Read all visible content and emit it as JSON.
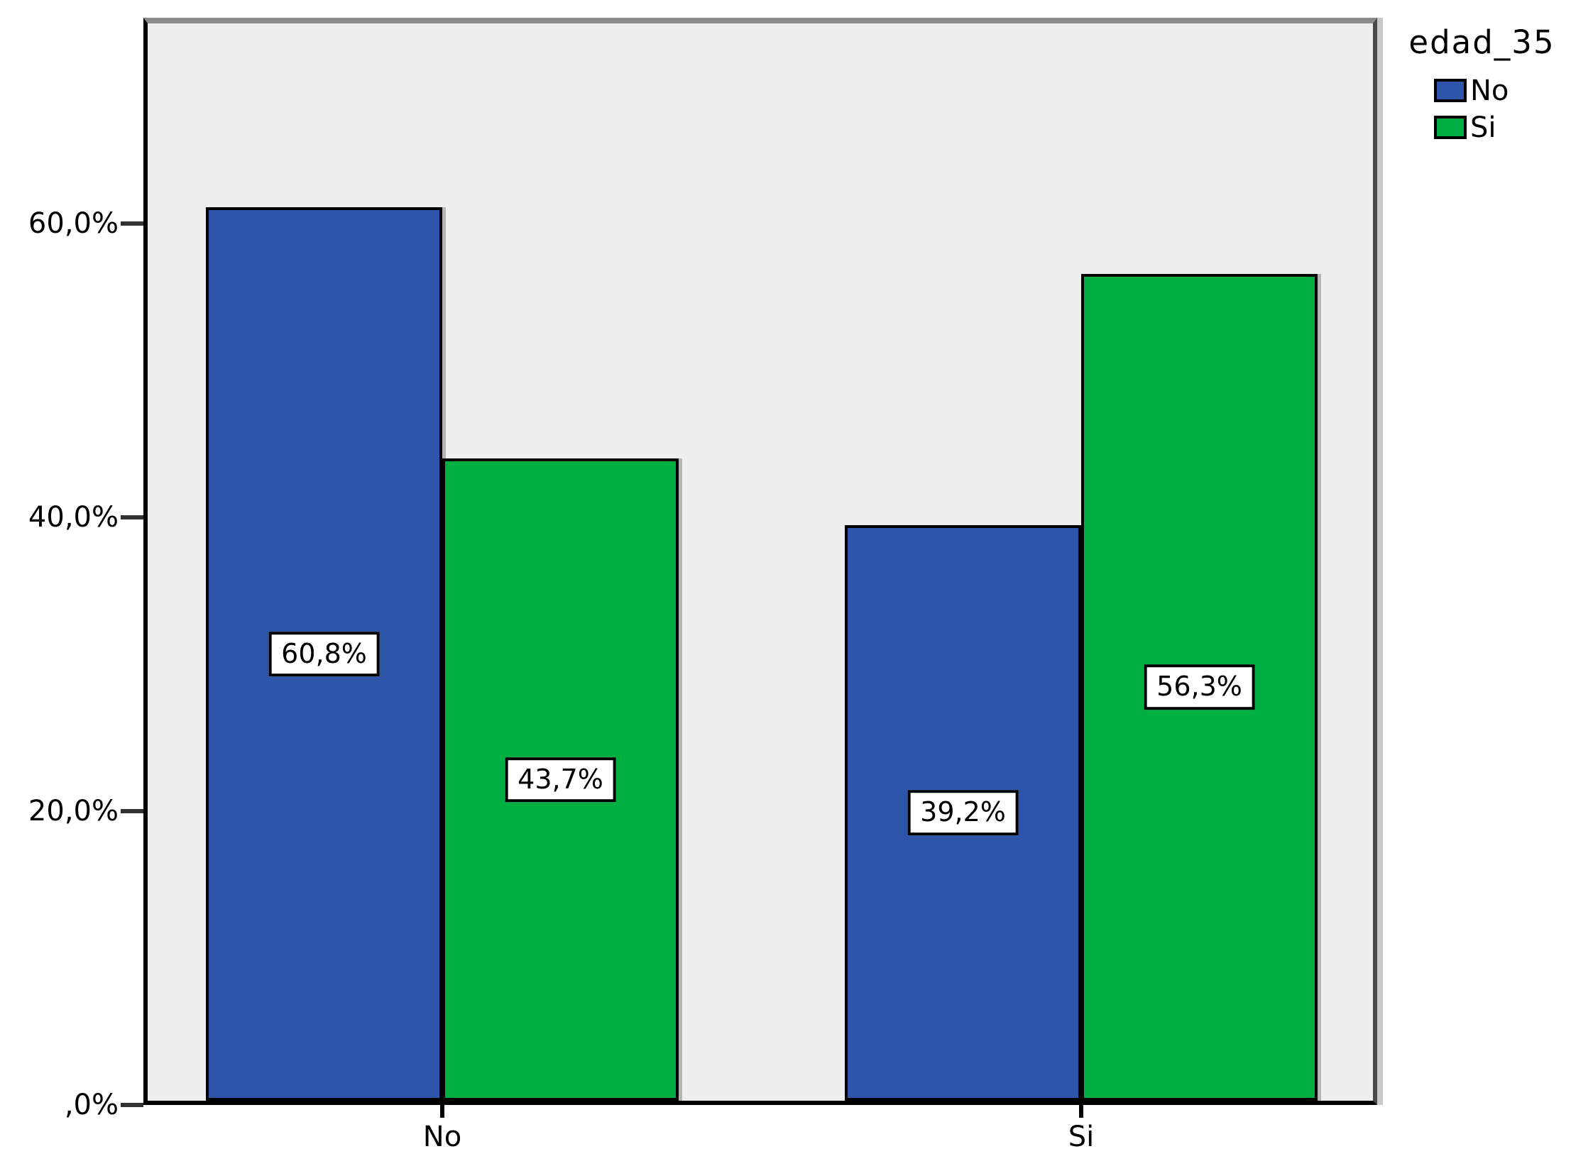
{
  "chart_data": {
    "type": "bar",
    "title": "",
    "xlabel": "",
    "ylabel": "",
    "categories": [
      "No",
      "Si"
    ],
    "series": [
      {
        "name": "No",
        "color": "#2D55AA",
        "values": [
          60.8,
          39.2
        ],
        "value_labels": [
          "60,8%",
          "39,2%"
        ]
      },
      {
        "name": "Si",
        "color": "#00AF42",
        "values": [
          43.7,
          56.3
        ],
        "value_labels": [
          "43,7%",
          "56,3%"
        ]
      }
    ],
    "y_ticks": [
      {
        "value": 0,
        "label": ",0%"
      },
      {
        "value": 20,
        "label": "20,0%"
      },
      {
        "value": 40,
        "label": "40,0%"
      },
      {
        "value": 60,
        "label": "60,0%"
      }
    ],
    "ylim": [
      0,
      73.5
    ],
    "grid": false,
    "legend_title": "edad_35",
    "legend_position": "top-right"
  },
  "colors": {
    "page_background": "#FFFFFF",
    "plot_background": "#EEEEEE",
    "bar_border": "#000000",
    "series_no": "#2D55AA",
    "series_si": "#00AF42"
  }
}
